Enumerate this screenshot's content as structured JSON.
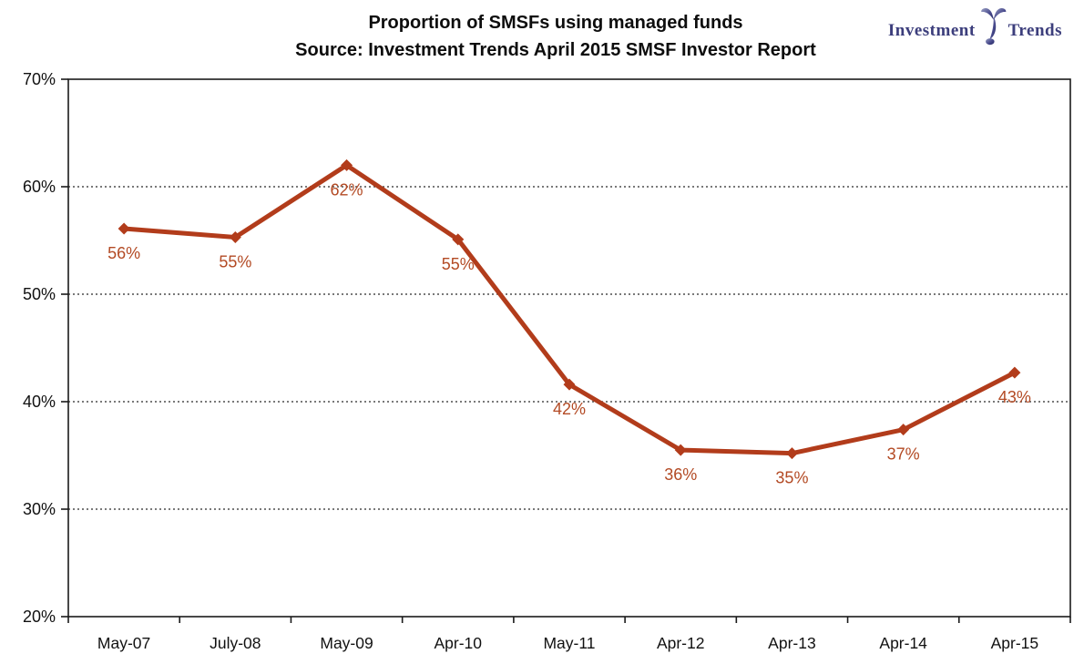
{
  "header": {
    "title": "Proportion of SMSFs using managed funds",
    "subtitle": "Source: Investment Trends April 2015 SMSF Investor Report"
  },
  "logo": {
    "word1": "Investment",
    "word2": "Trends",
    "color": "#3c3e7c"
  },
  "chart_data": {
    "type": "line",
    "title": "Proportion of SMSFs using managed funds",
    "subtitle": "Source: Investment Trends April 2015 SMSF Investor Report",
    "categories": [
      "May-07",
      "July-08",
      "May-09",
      "Apr-10",
      "May-11",
      "Apr-12",
      "Apr-13",
      "Apr-14",
      "Apr-15"
    ],
    "values": [
      56,
      55,
      62,
      55,
      42,
      36,
      35,
      37,
      43
    ],
    "plot_values": [
      56.1,
      55.3,
      62.0,
      55.1,
      41.6,
      35.5,
      35.2,
      37.4,
      42.7
    ],
    "point_labels": [
      "56%",
      "55%",
      "62%",
      "55%",
      "42%",
      "36%",
      "35%",
      "37%",
      "43%"
    ],
    "xlabel": "",
    "ylabel": "",
    "ylim": [
      20,
      70
    ],
    "ytick_step": 10,
    "ytick_labels": [
      "20%",
      "30%",
      "40%",
      "50%",
      "60%",
      "70%"
    ],
    "grid": "horizontal-dotted",
    "legend": "none",
    "marker": "diamond",
    "line_color": "#B23C1B",
    "data_label_color": "#B34A24",
    "axis_color": "#1a1a1a",
    "grid_color": "#4d4d4d"
  }
}
